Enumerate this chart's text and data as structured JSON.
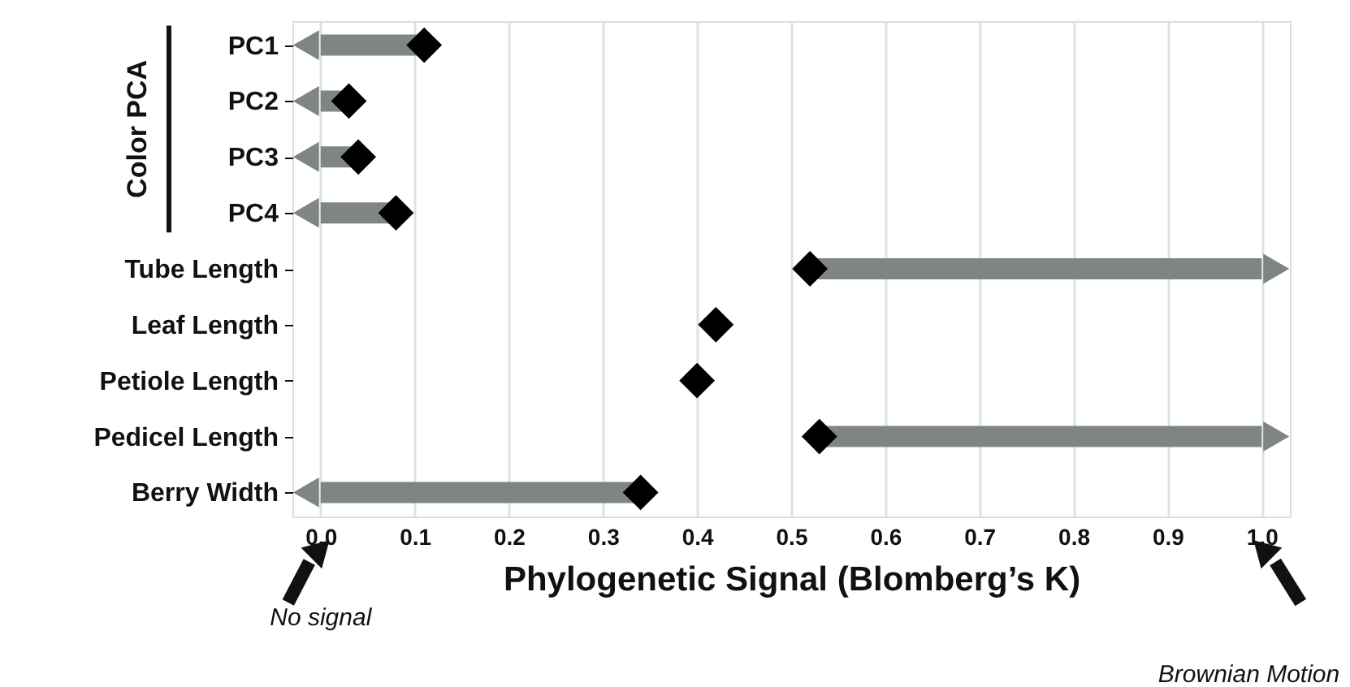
{
  "chart_data": {
    "type": "scatter",
    "orientation": "horizontal",
    "xlabel": "Phylogenetic Signal (Blomberg’s K)",
    "categories": [
      "PC1",
      "PC2",
      "PC3",
      "PC4",
      "Tube Length",
      "Leaf Length",
      "Petiole Length",
      "Pedicel Length",
      "Berry Width"
    ],
    "series": [
      {
        "type": "bar",
        "color": "#7f8580",
        "base": [
          0.11,
          0.03,
          0.04,
          0.08,
          0.52,
          null,
          null,
          0.53,
          0.34
        ],
        "values": [
          -0.11,
          -0.03,
          -0.04,
          -0.08,
          0.48,
          null,
          null,
          0.47,
          -0.34
        ]
      },
      {
        "type": "scatter",
        "color": "#000000",
        "marker": "diamond",
        "values": [
          0.11,
          0.03,
          0.04,
          0.08,
          0.52,
          0.42,
          0.4,
          0.53,
          0.34
        ]
      }
    ],
    "xlim": [
      -0.03,
      1.03
    ],
    "xticks": [
      {
        "value": 0,
        "label": "0.0"
      },
      0.1,
      0.2,
      0.3,
      0.4,
      0.5,
      0.6,
      0.7,
      0.8,
      0.9,
      {
        "value": 1,
        "label": "1.0"
      }
    ],
    "grid": "x",
    "annotations": [
      "Color PCA",
      "No signal",
      "Brownian Motion"
    ]
  }
}
